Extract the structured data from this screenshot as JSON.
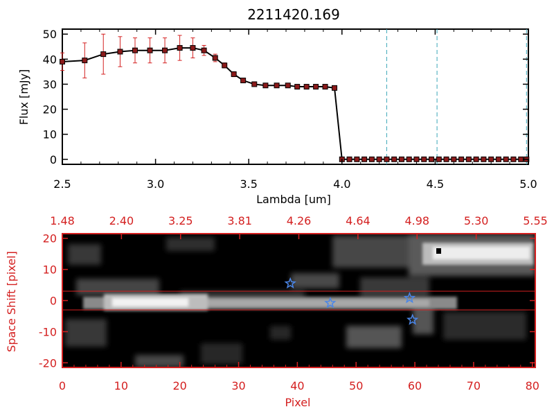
{
  "chart_data": [
    {
      "type": "line",
      "title": "2211420.169",
      "xlabel": "Lambda [um]",
      "ylabel": "Flux [mJy]",
      "xlim": [
        2.5,
        5.0
      ],
      "ylim": [
        -2,
        52
      ],
      "x_ticks": [
        "2.5",
        "3.0",
        "3.5",
        "4.0",
        "4.5",
        "5.0"
      ],
      "y_ticks": [
        "0",
        "10",
        "20",
        "30",
        "40",
        "50"
      ],
      "series": [
        {
          "x": [
            2.5,
            2.62,
            2.72,
            2.81,
            2.89,
            2.97,
            3.05,
            3.13,
            3.2,
            3.26,
            3.32,
            3.37,
            3.42,
            3.47,
            3.53,
            3.59,
            3.65,
            3.71,
            3.76,
            3.81,
            3.86,
            3.91,
            3.96,
            4.0,
            4.04,
            4.08,
            4.12,
            4.16,
            4.2,
            4.24,
            4.28,
            4.32,
            4.36,
            4.4,
            4.44,
            4.48,
            4.52,
            4.56,
            4.6,
            4.64,
            4.68,
            4.72,
            4.76,
            4.8,
            4.84,
            4.88,
            4.92,
            4.96,
            4.99
          ],
          "y": [
            39,
            39.5,
            42,
            43,
            43.5,
            43.5,
            43.5,
            44.5,
            44.5,
            43.5,
            40.5,
            37.5,
            34,
            31.5,
            30,
            29.5,
            29.5,
            29.5,
            29,
            29,
            29,
            29,
            28.5,
            0,
            0,
            0,
            0,
            0,
            0,
            0,
            0,
            0,
            0,
            0,
            0,
            0,
            0,
            0,
            0,
            0,
            0,
            0,
            0,
            0,
            0,
            0,
            0,
            0,
            0
          ],
          "err": [
            3.5,
            7,
            8,
            6,
            5,
            5,
            5,
            5,
            4,
            2,
            1.5,
            1,
            1,
            0.8,
            0.6,
            0.5,
            0.5,
            0.5,
            0.5,
            0.5,
            0.5,
            0.5,
            0.5,
            0,
            0,
            0,
            0,
            0,
            0,
            0,
            0,
            0,
            0,
            0,
            0,
            0,
            0,
            0,
            0,
            0,
            0,
            0,
            0,
            0,
            0,
            0,
            0,
            0,
            0
          ]
        }
      ],
      "vlines": [
        4.24,
        4.51,
        4.99
      ],
      "colors": {
        "line": "#000000",
        "marker": "#8b1a1a",
        "error": "#d42020",
        "vline": "#3aa6b8",
        "zero": "#d42020"
      }
    },
    {
      "type": "heatmap",
      "xlabel": "Pixel",
      "ylabel": "Space Shift [pixel]",
      "xlim": [
        0,
        80.5
      ],
      "ylim": [
        -21.5,
        21.5
      ],
      "x_ticks": [
        "0",
        "10",
        "20",
        "30",
        "40",
        "50",
        "60",
        "70",
        "80"
      ],
      "y_ticks": [
        "-20",
        "-10",
        "0",
        "10",
        "20"
      ],
      "top_ticks": [
        "1.48",
        "2.40",
        "3.25",
        "3.81",
        "4.26",
        "4.64",
        "4.98",
        "5.30",
        "5.55"
      ],
      "hlines": [
        3,
        -3
      ],
      "stars": [
        {
          "px": 38.8,
          "dy": 5.5
        },
        {
          "px": 45.6,
          "dy": -0.8
        },
        {
          "px": 59.1,
          "dy": 0.8
        },
        {
          "px": 59.6,
          "dy": -6.2
        }
      ],
      "colors": {
        "frame": "#d42020",
        "star": "#4a86e8",
        "background": "#000000"
      }
    }
  ]
}
